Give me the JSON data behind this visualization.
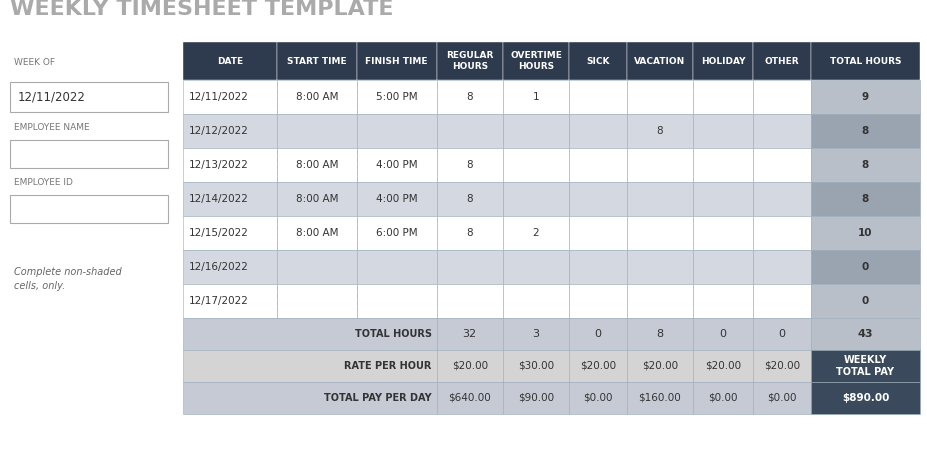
{
  "title": "WEEKLY TIMESHEET TEMPLATE",
  "title_color": "#aaaaaa",
  "title_fontsize": 16,
  "left_section": {
    "week_of_label": {
      "text": "WEEK OF",
      "fontsize": 6.5,
      "color": "#777777"
    },
    "week_of_value": {
      "text": "12/11/2022",
      "fontsize": 8.5,
      "color": "#333333"
    },
    "emp_name_label": {
      "text": "EMPLOYEE NAME",
      "fontsize": 6.5,
      "color": "#777777"
    },
    "emp_id_label": {
      "text": "EMPLOYEE ID",
      "fontsize": 6.5,
      "color": "#777777"
    },
    "note": {
      "text": "Complete non-shaded\ncells, only.",
      "fontsize": 7,
      "color": "#666666"
    }
  },
  "header_bg": "#2e3a4e",
  "header_text_color": "#ffffff",
  "header_fontsize": 6.5,
  "col_headers": [
    "DATE",
    "START TIME",
    "FINISH TIME",
    "REGULAR\nHOURS",
    "OVERTIME\nHOURS",
    "SICK",
    "VACATION",
    "HOLIDAY",
    "OTHER",
    "TOTAL HOURS"
  ],
  "rows": [
    {
      "date": "12/11/2022",
      "start": "8:00 AM",
      "finish": "5:00 PM",
      "reg": "8",
      "ot": "1",
      "sick": "",
      "vac": "",
      "hol": "",
      "other": "",
      "total": "9",
      "shaded": false
    },
    {
      "date": "12/12/2022",
      "start": "",
      "finish": "",
      "reg": "",
      "ot": "",
      "sick": "",
      "vac": "8",
      "hol": "",
      "other": "",
      "total": "8",
      "shaded": true
    },
    {
      "date": "12/13/2022",
      "start": "8:00 AM",
      "finish": "4:00 PM",
      "reg": "8",
      "ot": "",
      "sick": "",
      "vac": "",
      "hol": "",
      "other": "",
      "total": "8",
      "shaded": false
    },
    {
      "date": "12/14/2022",
      "start": "8:00 AM",
      "finish": "4:00 PM",
      "reg": "8",
      "ot": "",
      "sick": "",
      "vac": "",
      "hol": "",
      "other": "",
      "total": "8",
      "shaded": true
    },
    {
      "date": "12/15/2022",
      "start": "8:00 AM",
      "finish": "6:00 PM",
      "reg": "8",
      "ot": "2",
      "sick": "",
      "vac": "",
      "hol": "",
      "other": "",
      "total": "10",
      "shaded": false
    },
    {
      "date": "12/16/2022",
      "start": "",
      "finish": "",
      "reg": "",
      "ot": "",
      "sick": "",
      "vac": "",
      "hol": "",
      "other": "",
      "total": "0",
      "shaded": true
    },
    {
      "date": "12/17/2022",
      "start": "",
      "finish": "",
      "reg": "",
      "ot": "",
      "sick": "",
      "vac": "",
      "hol": "",
      "other": "",
      "total": "0",
      "shaded": false
    }
  ],
  "totals_row": {
    "label": "TOTAL HOURS",
    "values": [
      "32",
      "3",
      "0",
      "8",
      "0",
      "0",
      "43"
    ]
  },
  "rate_row": {
    "label": "RATE PER HOUR",
    "values": [
      "$20.00",
      "$30.00",
      "$20.00",
      "$20.00",
      "$20.00",
      "$20.00",
      "WEEKLY\nTOTAL PAY"
    ]
  },
  "pay_row": {
    "label": "TOTAL PAY PER DAY",
    "values": [
      "$640.00",
      "$90.00",
      "$0.00",
      "$160.00",
      "$0.00",
      "$0.00",
      "$890.00"
    ]
  },
  "shaded_row_bg": "#d4d8e0",
  "white_row_bg": "#ffffff",
  "total_col_bg_shaded": "#9aa3b0",
  "total_col_bg_white": "#b8bfc9",
  "footer1_bg": "#c5cad4",
  "footer2_bg": "#d4d4d4",
  "footer3_bg": "#c5cad4",
  "footer_dark_bg": "#3a4a5c",
  "border_color": "#9aabba",
  "dashed_col_color": "#bbbbbb"
}
